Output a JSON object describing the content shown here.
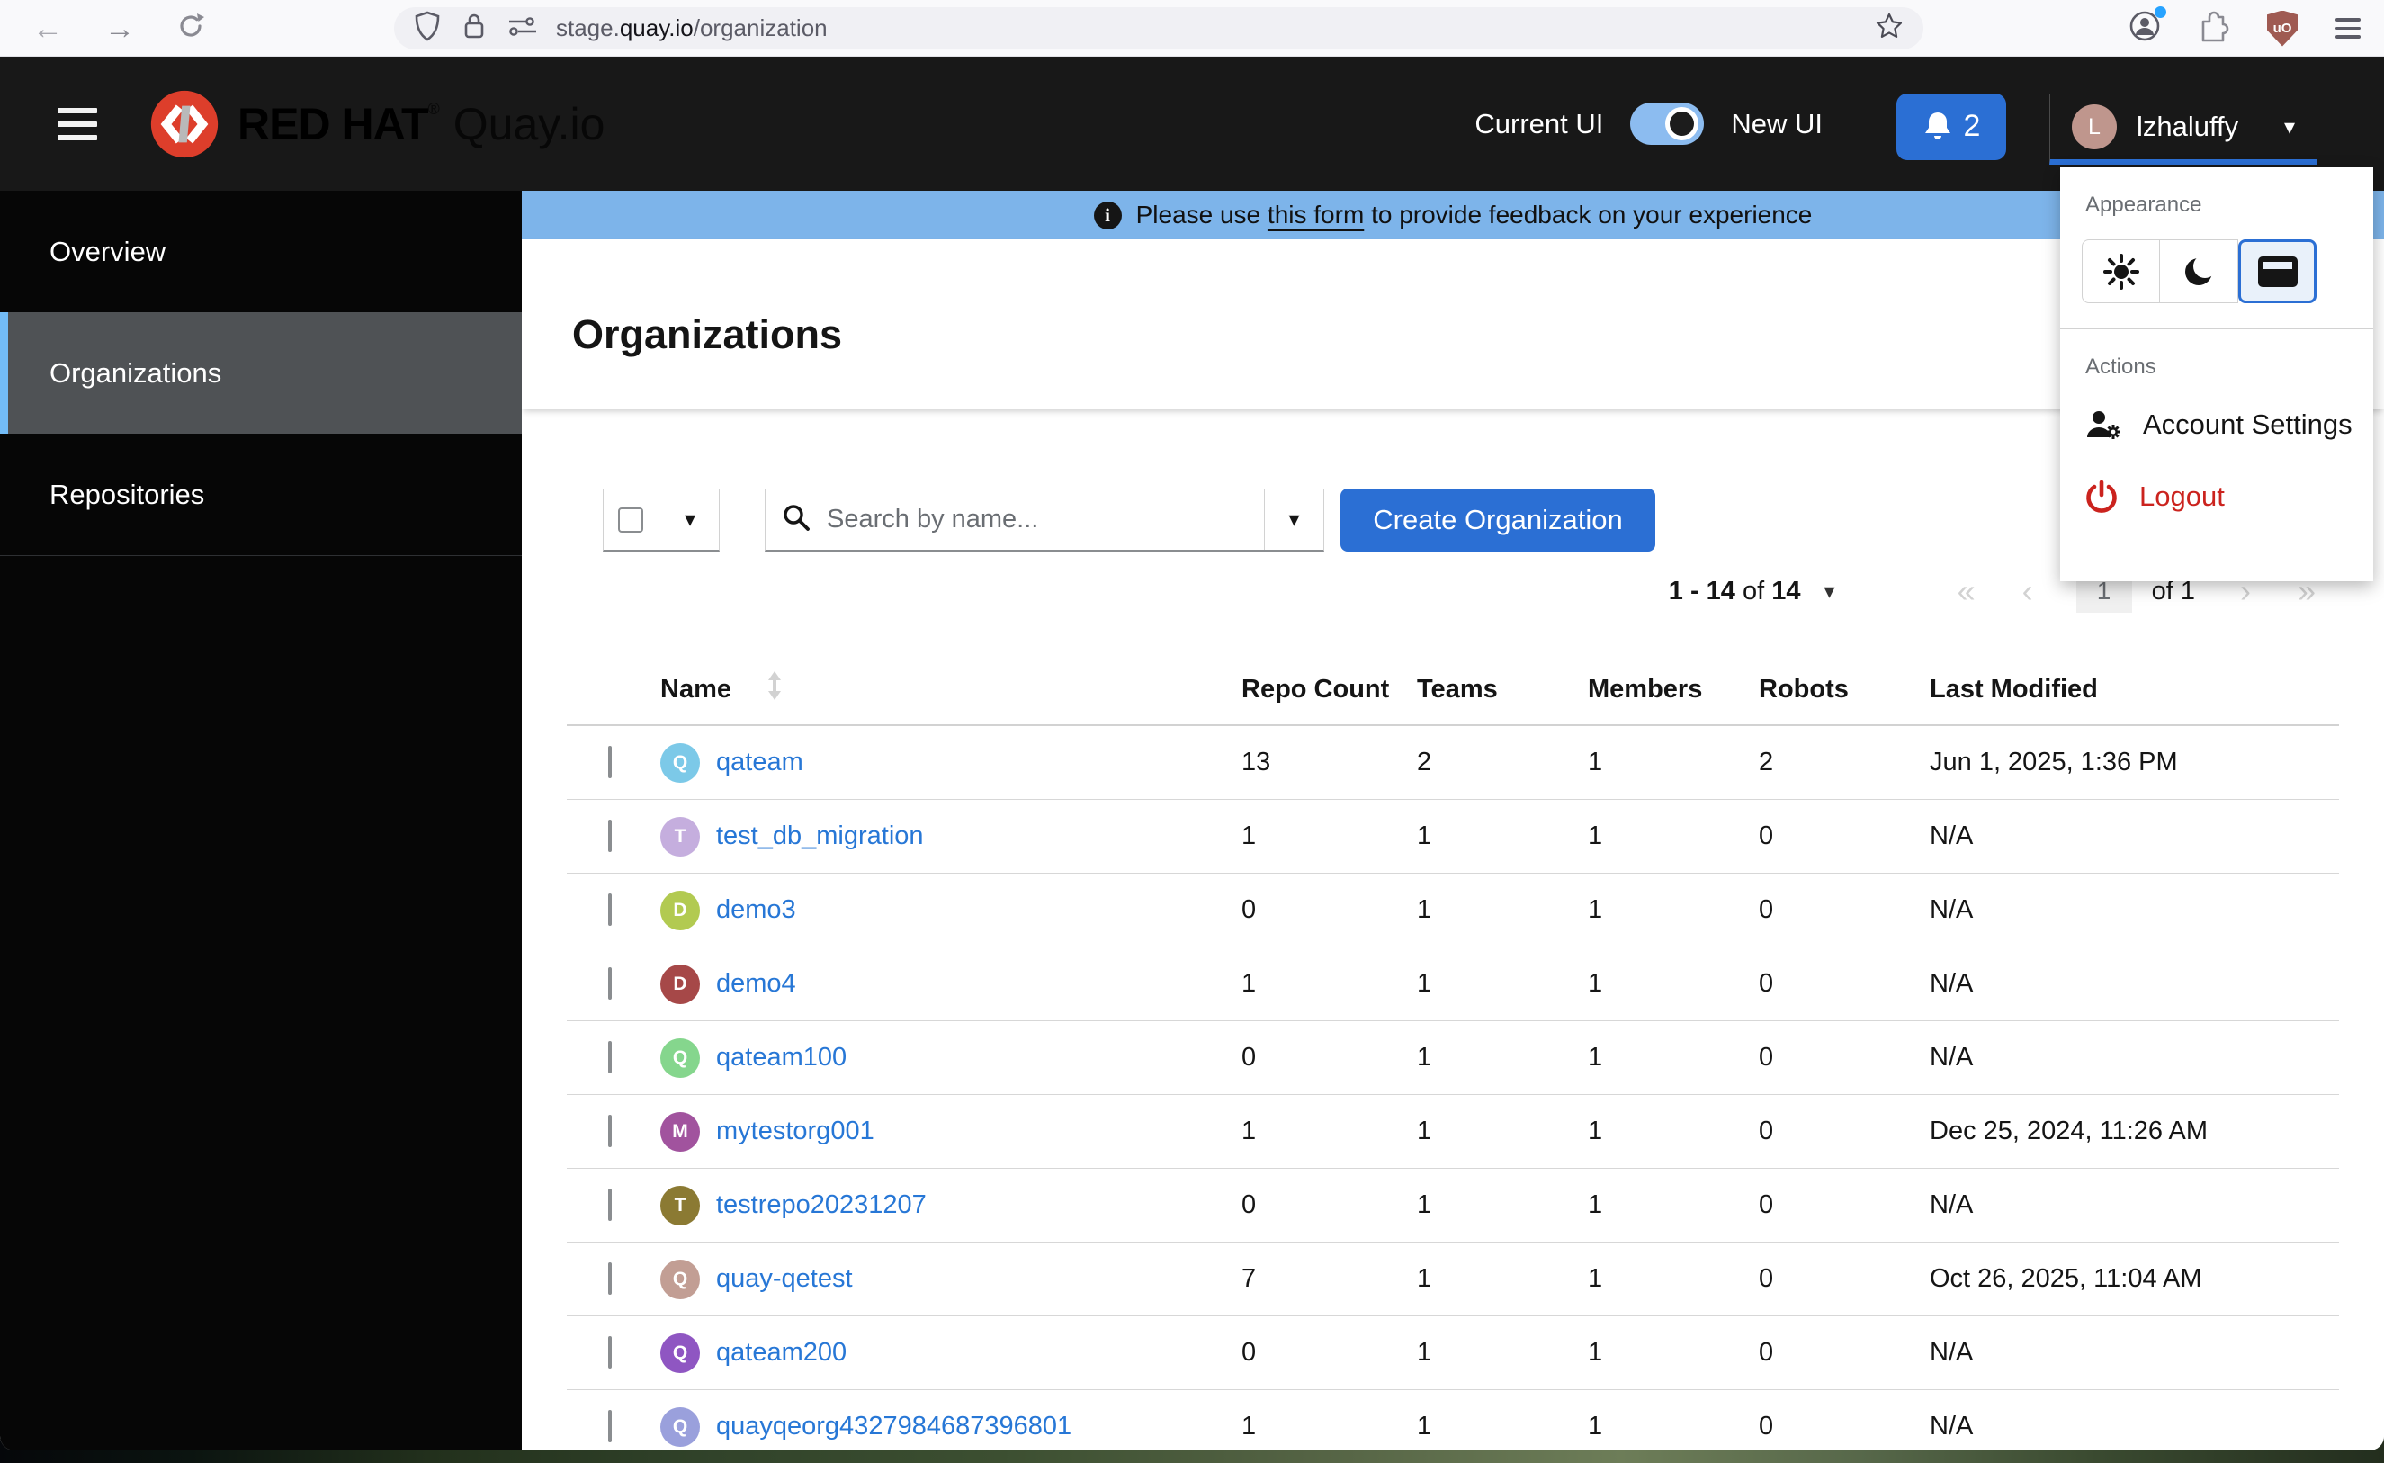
{
  "browser": {
    "url_prefix": "stage.",
    "url_domain": "quay.io",
    "url_path": "/organization",
    "ublock_label": "uO"
  },
  "masthead": {
    "brand_red_hat": "RED HAT",
    "brand_reg": "®",
    "brand_product": "Quay.io",
    "toggle_left_label": "Current UI",
    "toggle_right_label": "New UI",
    "notification_count": "2",
    "user_name": "lzhaluffy",
    "user_initial": "L"
  },
  "sidebar": {
    "items": [
      {
        "label": "Overview",
        "current": false
      },
      {
        "label": "Organizations",
        "current": true
      },
      {
        "label": "Repositories",
        "current": false
      }
    ]
  },
  "banner": {
    "text_before": "Please use",
    "link_text": "this form",
    "text_after": "to provide feedback on your experience"
  },
  "page": {
    "title": "Organizations"
  },
  "toolbar": {
    "search_placeholder": "Search by name...",
    "create_button": "Create Organization"
  },
  "pagination": {
    "range": "1 - 14",
    "of_word": "of",
    "total": "14",
    "first": "«",
    "prev": "‹",
    "page": "1",
    "pages_label": "of 1",
    "next": "›",
    "last": "»"
  },
  "table": {
    "headers": [
      "Name",
      "Repo Count",
      "Teams",
      "Members",
      "Robots",
      "Last Modified"
    ],
    "rows": [
      {
        "name": "qateam",
        "initial": "Q",
        "avatar_color": "#7cc9e8",
        "repos": "13",
        "teams": "2",
        "members": "1",
        "robots": "2",
        "modified": "Jun 1, 2025, 1:36 PM"
      },
      {
        "name": "test_db_migration",
        "initial": "T",
        "avatar_color": "#c5aede",
        "repos": "1",
        "teams": "1",
        "members": "1",
        "robots": "0",
        "modified": "N/A"
      },
      {
        "name": "demo3",
        "initial": "D",
        "avatar_color": "#b2ca51",
        "repos": "0",
        "teams": "1",
        "members": "1",
        "robots": "0",
        "modified": "N/A"
      },
      {
        "name": "demo4",
        "initial": "D",
        "avatar_color": "#a64848",
        "repos": "1",
        "teams": "1",
        "members": "1",
        "robots": "0",
        "modified": "N/A"
      },
      {
        "name": "qateam100",
        "initial": "Q",
        "avatar_color": "#85d68d",
        "repos": "0",
        "teams": "1",
        "members": "1",
        "robots": "0",
        "modified": "N/A"
      },
      {
        "name": "mytestorg001",
        "initial": "M",
        "avatar_color": "#a1539e",
        "repos": "1",
        "teams": "1",
        "members": "1",
        "robots": "0",
        "modified": "Dec 25, 2024, 11:26 AM"
      },
      {
        "name": "testrepo20231207",
        "initial": "T",
        "avatar_color": "#8b7a33",
        "repos": "0",
        "teams": "1",
        "members": "1",
        "robots": "0",
        "modified": "N/A"
      },
      {
        "name": "quay-qetest",
        "initial": "Q",
        "avatar_color": "#c29e94",
        "repos": "7",
        "teams": "1",
        "members": "1",
        "robots": "0",
        "modified": "Oct 26, 2025, 11:04 AM"
      },
      {
        "name": "qateam200",
        "initial": "Q",
        "avatar_color": "#8f56c2",
        "repos": "0",
        "teams": "1",
        "members": "1",
        "robots": "0",
        "modified": "N/A"
      },
      {
        "name": "quayqeorg4327984687396801",
        "initial": "Q",
        "avatar_color": "#9aa0dc",
        "repos": "1",
        "teams": "1",
        "members": "1",
        "robots": "0",
        "modified": "N/A"
      }
    ]
  },
  "user_menu": {
    "appearance_label": "Appearance",
    "actions_label": "Actions",
    "account_settings": "Account Settings",
    "logout": "Logout"
  },
  "colors": {
    "accent": "#2b6fd4",
    "link": "#2777d6",
    "banner_bg": "#7db4ea",
    "toggle_pill": "#8cbcf0",
    "brand_red": "#dd3e2b",
    "logout_red": "#cb231e"
  }
}
